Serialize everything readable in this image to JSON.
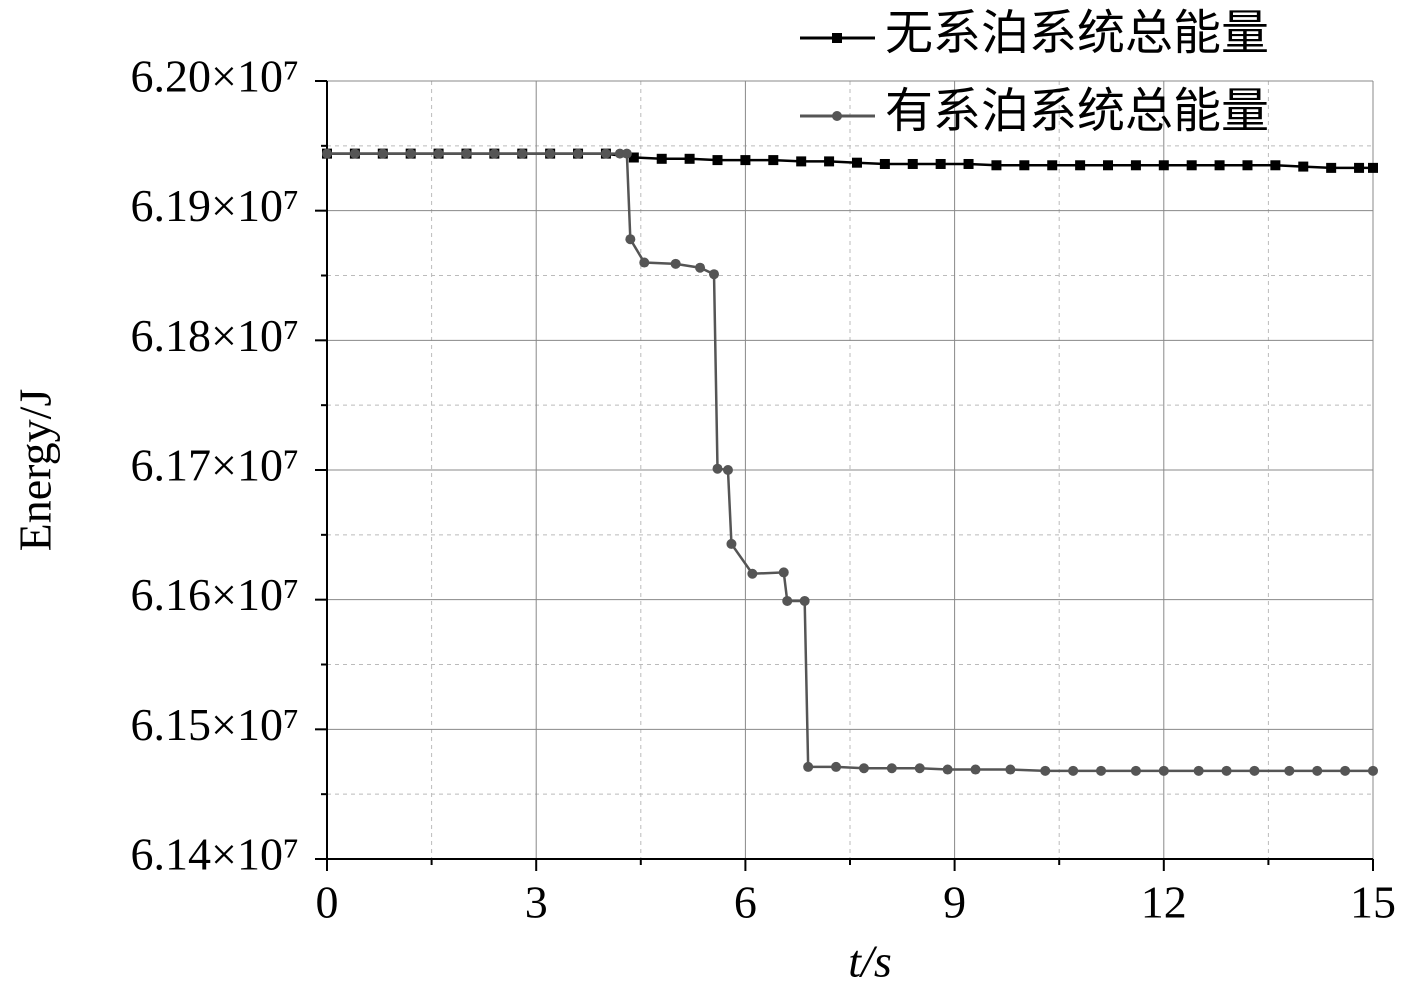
{
  "chart_data": {
    "type": "line",
    "xlabel": "t/s",
    "ylabel": "Energy/J",
    "xlim": [
      0,
      15
    ],
    "xticks": [
      0,
      3,
      6,
      9,
      12,
      15
    ],
    "minor_xticks": [
      1.5,
      4.5,
      7.5,
      10.5,
      13.5
    ],
    "ylim": [
      61400000,
      62000000
    ],
    "yticks": [
      {
        "value": 61400000,
        "label": "6.14×10⁷"
      },
      {
        "value": 61500000,
        "label": "6.15×10⁷"
      },
      {
        "value": 61600000,
        "label": "6.16×10⁷"
      },
      {
        "value": 61700000,
        "label": "6.17×10⁷"
      },
      {
        "value": 61800000,
        "label": "6.18×10⁷"
      },
      {
        "value": 61900000,
        "label": "6.19×10⁷"
      },
      {
        "value": 62000000,
        "label": "6.20×10⁷"
      }
    ],
    "minor_yticks": [
      61450000,
      61550000,
      61650000,
      61750000,
      61850000,
      61950000
    ],
    "grid": true,
    "legend": "upper right",
    "series": [
      {
        "name": "无系泊系统总能量",
        "color": "#000000",
        "marker": "square",
        "x": [
          0,
          0.4,
          0.8,
          1.2,
          1.6,
          2.0,
          2.4,
          2.8,
          3.2,
          3.6,
          4.0,
          4.4,
          4.8,
          5.2,
          5.6,
          6.0,
          6.4,
          6.8,
          7.2,
          7.6,
          8.0,
          8.4,
          8.8,
          9.2,
          9.6,
          10.0,
          10.4,
          10.8,
          11.2,
          11.6,
          12.0,
          12.4,
          12.8,
          13.2,
          13.6,
          14.0,
          14.4,
          14.8,
          15.0
        ],
        "values": [
          61944000,
          61944000,
          61944000,
          61944000,
          61944000,
          61944000,
          61944000,
          61944000,
          61944000,
          61944000,
          61944000,
          61941000,
          61940000,
          61940000,
          61939000,
          61939000,
          61939000,
          61938000,
          61938000,
          61937000,
          61936000,
          61936000,
          61936000,
          61936000,
          61935000,
          61935000,
          61935000,
          61935000,
          61935000,
          61935000,
          61935000,
          61935000,
          61935000,
          61935000,
          61935000,
          61934000,
          61933000,
          61933000,
          61933000
        ]
      },
      {
        "name": "有系泊系统总能量",
        "color": "#555555",
        "marker": "circle",
        "x": [
          0,
          0.4,
          0.8,
          1.2,
          1.6,
          2.0,
          2.4,
          2.8,
          3.2,
          3.6,
          4.0,
          4.2,
          4.3,
          4.35,
          4.55,
          5.0,
          5.35,
          5.55,
          5.6,
          5.75,
          5.8,
          6.1,
          6.55,
          6.6,
          6.85,
          6.9,
          7.3,
          7.7,
          8.1,
          8.5,
          8.9,
          9.3,
          9.8,
          10.3,
          10.7,
          11.1,
          11.6,
          12.0,
          12.5,
          12.9,
          13.3,
          13.8,
          14.2,
          14.6,
          15.0
        ],
        "values": [
          61944000,
          61944000,
          61944000,
          61944000,
          61944000,
          61944000,
          61944000,
          61944000,
          61944000,
          61944000,
          61944000,
          61944000,
          61944000,
          61878000,
          61860000,
          61859000,
          61856000,
          61851000,
          61701000,
          61700000,
          61643000,
          61620000,
          61621000,
          61599000,
          61599000,
          61471000,
          61471000,
          61470000,
          61470000,
          61470000,
          61469000,
          61469000,
          61469000,
          61468000,
          61468000,
          61468000,
          61468000,
          61468000,
          61468000,
          61468000,
          61468000,
          61468000,
          61468000,
          61468000,
          61468000
        ]
      }
    ]
  }
}
